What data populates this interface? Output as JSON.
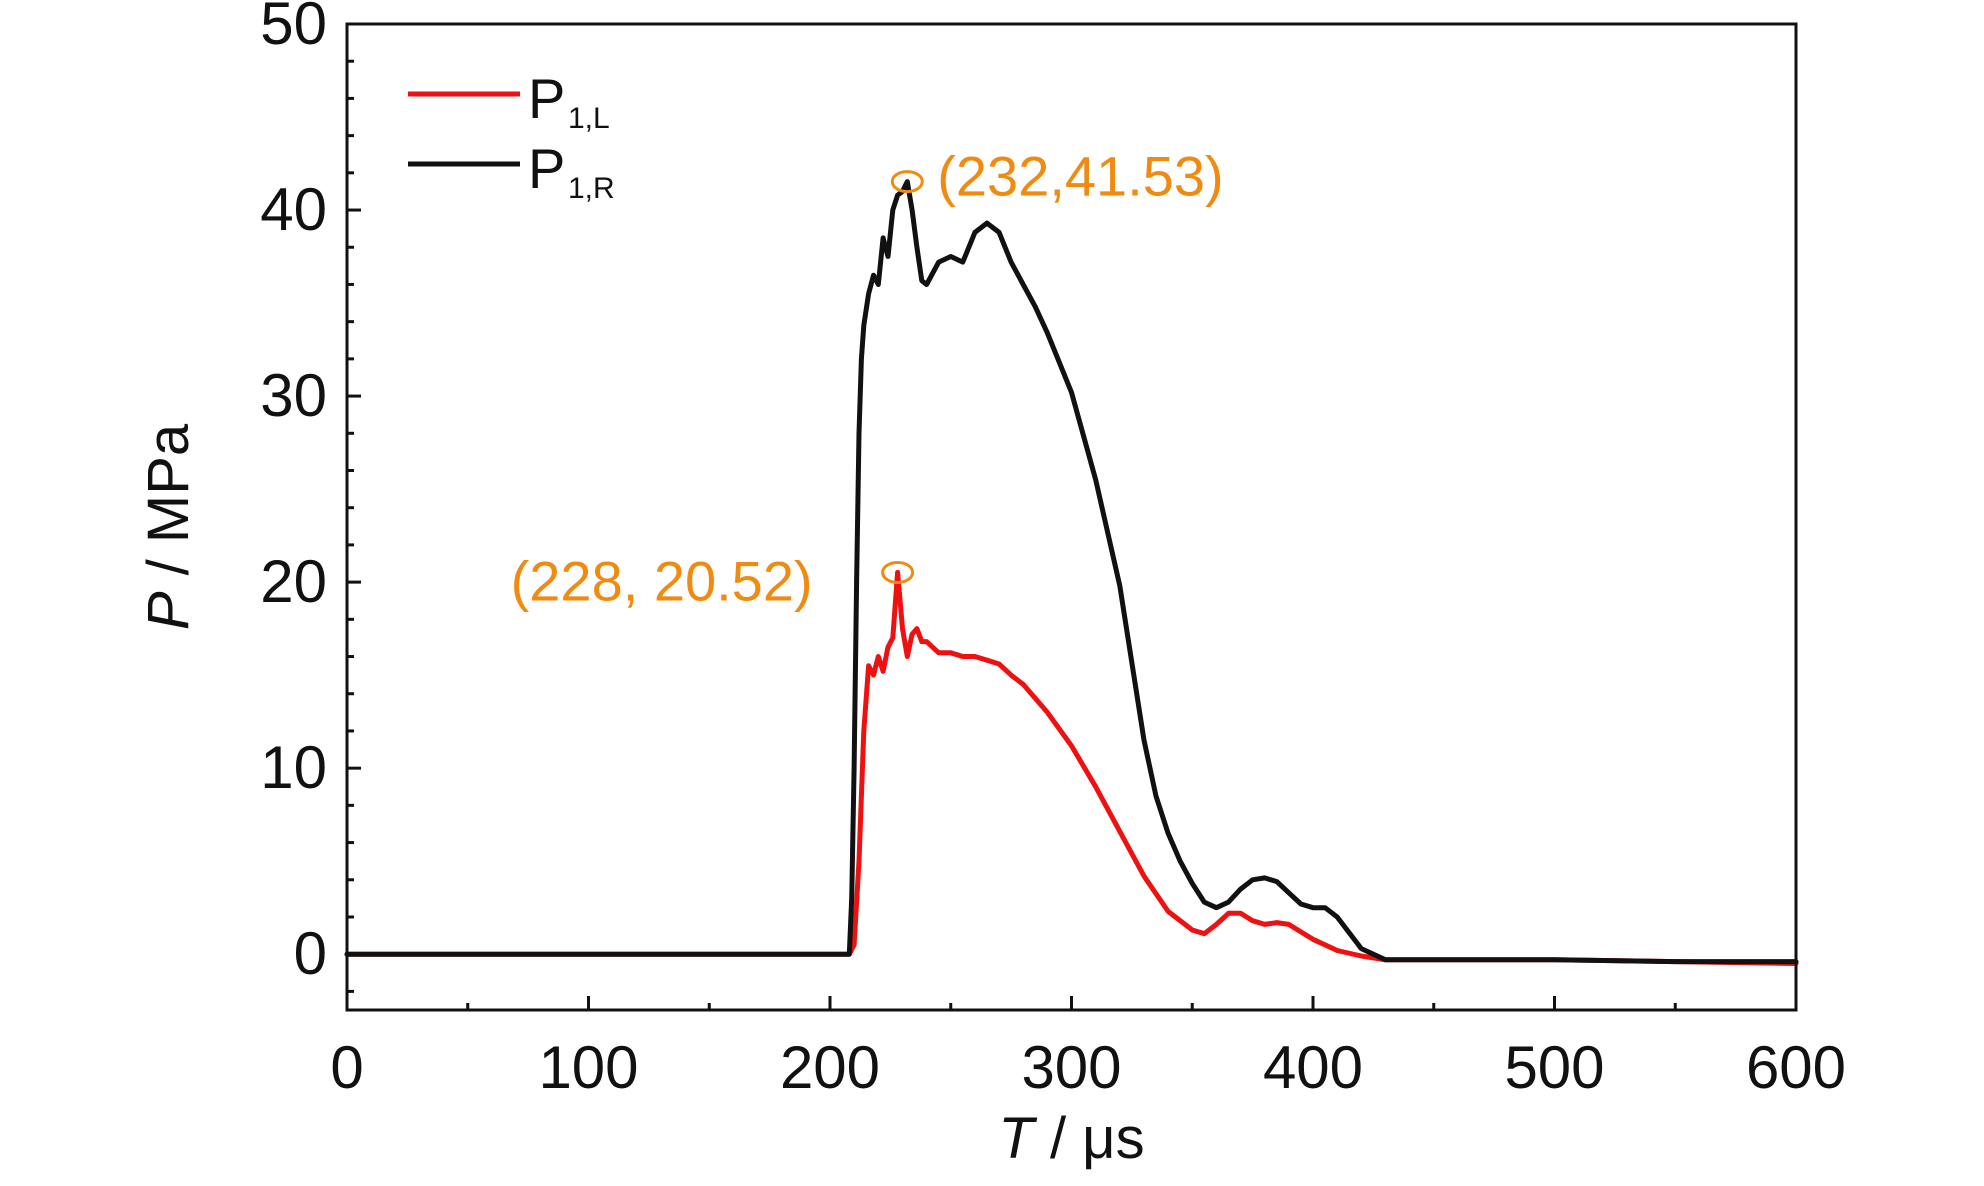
{
  "chart_data": {
    "type": "line",
    "xlabel": {
      "italic": "T",
      "rest": " / μs"
    },
    "ylabel": {
      "italic": "P",
      "rest": " / MPa"
    },
    "xlim": [
      0,
      600
    ],
    "ylim": [
      -3,
      50
    ],
    "x_ticks": [
      0,
      100,
      200,
      300,
      400,
      500,
      600
    ],
    "y_ticks": [
      0,
      10,
      20,
      30,
      40,
      50
    ],
    "x_tick_labels": [
      "0",
      "100",
      "200",
      "300",
      "400",
      "500",
      "600"
    ],
    "y_tick_labels": [
      "0",
      "10",
      "20",
      "30",
      "40",
      "50"
    ],
    "grid": false,
    "legend_position": "top-left",
    "series": [
      {
        "name": "P",
        "name_sub": "1,L",
        "color": "#ee1111",
        "x": [
          0,
          100,
          200,
          208,
          210,
          212,
          214,
          216,
          218,
          220,
          222,
          224,
          226,
          228,
          230,
          232,
          234,
          236,
          238,
          240,
          245,
          250,
          255,
          260,
          265,
          270,
          275,
          280,
          290,
          300,
          310,
          320,
          330,
          340,
          350,
          355,
          360,
          365,
          370,
          375,
          380,
          385,
          390,
          395,
          400,
          410,
          420,
          430,
          450,
          500,
          550,
          600
        ],
        "y": [
          0,
          0,
          0,
          0,
          0.5,
          5,
          12,
          15.5,
          15,
          16,
          15.2,
          16.5,
          17,
          20.52,
          17.5,
          16,
          17.2,
          17.5,
          16.8,
          16.8,
          16.2,
          16.2,
          16,
          16,
          15.8,
          15.6,
          15,
          14.5,
          13,
          11.2,
          9,
          6.6,
          4.2,
          2.3,
          1.3,
          1.1,
          1.6,
          2.2,
          2.2,
          1.8,
          1.6,
          1.7,
          1.6,
          1.2,
          0.8,
          0.2,
          -0.1,
          -0.3,
          -0.3,
          -0.3,
          -0.4,
          -0.5
        ]
      },
      {
        "name": "P",
        "name_sub": "1,R",
        "color": "#111111",
        "x": [
          0,
          100,
          200,
          208,
          209,
          210,
          211,
          212,
          213,
          214,
          216,
          218,
          220,
          222,
          224,
          226,
          228,
          230,
          232,
          234,
          236,
          238,
          240,
          245,
          250,
          255,
          260,
          265,
          270,
          275,
          280,
          285,
          290,
          300,
          310,
          320,
          330,
          335,
          340,
          345,
          350,
          355,
          360,
          365,
          370,
          375,
          380,
          385,
          390,
          395,
          400,
          405,
          410,
          420,
          430,
          450,
          500,
          550,
          600
        ],
        "y": [
          0,
          0,
          0,
          0,
          3,
          10,
          20,
          28,
          32,
          33.8,
          35.5,
          36.5,
          36,
          38.5,
          37.5,
          40,
          40.8,
          41,
          41.53,
          40,
          38,
          36.2,
          36,
          37.2,
          37.5,
          37.2,
          38.8,
          39.3,
          38.8,
          37.2,
          36,
          34.8,
          33.4,
          30.2,
          25.5,
          19.8,
          11.5,
          8.5,
          6.5,
          5,
          3.8,
          2.8,
          2.5,
          2.8,
          3.5,
          4,
          4.1,
          3.9,
          3.3,
          2.7,
          2.5,
          2.5,
          2,
          0.3,
          -0.3,
          -0.3,
          -0.3,
          -0.4,
          -0.4
        ]
      }
    ],
    "annotations": [
      {
        "text": "(232,41.53)",
        "x": 232,
        "y": 41.53,
        "color": "#f08a10",
        "side": "right"
      },
      {
        "text": "(228, 20.52)",
        "x": 228,
        "y": 20.52,
        "color": "#f08a10",
        "side": "left"
      }
    ]
  }
}
